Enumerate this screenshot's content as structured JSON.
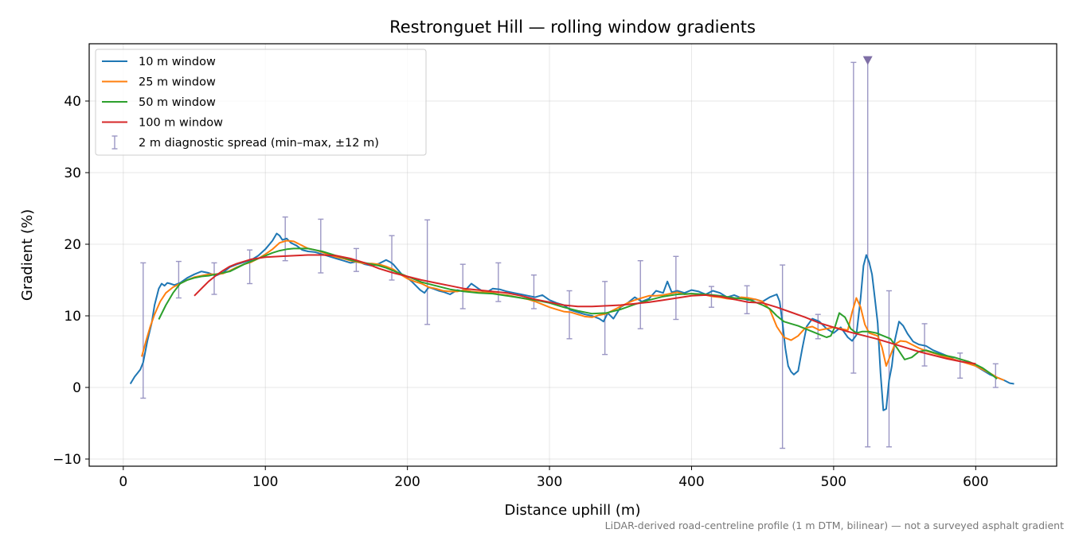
{
  "chart_data": {
    "type": "line",
    "title": "Restronguet Hill — rolling window gradients",
    "xlabel": "Distance uphill (m)",
    "ylabel": "Gradient (%)",
    "xlim": [
      -24,
      657
    ],
    "ylim": [
      -11,
      48
    ],
    "xticks": [
      0,
      100,
      200,
      300,
      400,
      500,
      600
    ],
    "xtick_labels": [
      "0",
      "100",
      "200",
      "300",
      "400",
      "500",
      "600"
    ],
    "yticks": [
      -10,
      0,
      10,
      20,
      30,
      40
    ],
    "ytick_labels": [
      "−10",
      "0",
      "10",
      "20",
      "30",
      "40"
    ],
    "grid": true,
    "legend_position": "top-left",
    "footnote": "LiDAR-derived road-centreline profile (1 m DTM, bilinear) — not a surveyed asphalt gradient",
    "series": [
      {
        "name": "10 m window",
        "color": "#1f77b4",
        "x": [
          5,
          8,
          10,
          12,
          14,
          17,
          20,
          22,
          25,
          27,
          29,
          31,
          33,
          36,
          40,
          45,
          50,
          55,
          60,
          65,
          70,
          75,
          80,
          85,
          90,
          95,
          100,
          105,
          108,
          110,
          112,
          115,
          118,
          122,
          126,
          130,
          135,
          140,
          145,
          150,
          155,
          160,
          165,
          170,
          175,
          180,
          185,
          188,
          190,
          193,
          196,
          200,
          203,
          206,
          209,
          212,
          215,
          218,
          222,
          226,
          230,
          235,
          240,
          245,
          250,
          255,
          260,
          265,
          270,
          275,
          280,
          285,
          290,
          295,
          300,
          305,
          310,
          315,
          320,
          325,
          330,
          335,
          338,
          341,
          345,
          350,
          355,
          360,
          365,
          370,
          375,
          380,
          383,
          386,
          390,
          395,
          400,
          405,
          410,
          415,
          420,
          425,
          430,
          435,
          440,
          445,
          450,
          455,
          460,
          462,
          464,
          466,
          468,
          470,
          472,
          475,
          478,
          481,
          485,
          490,
          495,
          500,
          505,
          510,
          513,
          516,
          519,
          521,
          523,
          525,
          527,
          529,
          531,
          533,
          535,
          537,
          539,
          541,
          543,
          546,
          549,
          552,
          556,
          560,
          565,
          570,
          575,
          580,
          585,
          590,
          595,
          600,
          605,
          610,
          615,
          620,
          624,
          627
        ],
        "values": [
          0.5,
          1.5,
          2.0,
          2.5,
          3.5,
          6.5,
          9.0,
          11.5,
          13.8,
          14.5,
          14.2,
          14.6,
          14.5,
          14.3,
          14.6,
          15.3,
          15.8,
          16.2,
          16.0,
          15.6,
          16.0,
          16.8,
          17.2,
          17.5,
          17.8,
          18.4,
          19.3,
          20.5,
          21.5,
          21.2,
          20.6,
          20.8,
          20.2,
          19.8,
          19.2,
          19.0,
          18.9,
          18.6,
          18.3,
          18.0,
          17.7,
          17.4,
          17.6,
          17.2,
          17.0,
          17.3,
          17.8,
          17.5,
          17.2,
          16.5,
          15.8,
          15.3,
          14.8,
          14.2,
          13.6,
          13.2,
          14.0,
          13.8,
          13.5,
          13.3,
          13.0,
          13.6,
          13.4,
          14.5,
          13.8,
          13.2,
          13.8,
          13.7,
          13.4,
          13.2,
          13.0,
          12.8,
          12.6,
          12.9,
          12.2,
          11.8,
          11.5,
          10.8,
          10.5,
          10.2,
          10.0,
          9.6,
          9.2,
          10.4,
          9.6,
          11.2,
          11.8,
          12.6,
          12.0,
          12.4,
          13.5,
          13.2,
          14.8,
          13.3,
          13.5,
          13.2,
          13.6,
          13.4,
          13.0,
          13.5,
          13.2,
          12.6,
          12.9,
          12.5,
          12.2,
          12.3,
          12.0,
          12.6,
          13.0,
          12.0,
          9.0,
          5.5,
          3.0,
          2.2,
          1.8,
          2.3,
          5.5,
          8.5,
          9.6,
          9.2,
          8.2,
          7.6,
          8.4,
          7.0,
          6.5,
          7.3,
          12.5,
          17.0,
          18.5,
          17.5,
          15.8,
          12.5,
          9.0,
          2.0,
          -3.2,
          -3.0,
          1.0,
          3.0,
          6.5,
          9.2,
          8.6,
          7.5,
          6.4,
          6.0,
          5.8,
          5.2,
          4.8,
          4.4,
          3.9,
          3.6,
          3.4,
          3.0,
          2.4,
          1.8,
          1.4,
          1.0,
          0.6,
          0.5
        ]
      },
      {
        "name": "25 m window",
        "color": "#ff7f0e",
        "x": [
          13,
          16,
          19,
          22,
          26,
          30,
          35,
          40,
          45,
          50,
          55,
          60,
          65,
          70,
          75,
          80,
          85,
          90,
          95,
          100,
          105,
          110,
          115,
          120,
          125,
          130,
          135,
          140,
          145,
          150,
          155,
          160,
          165,
          170,
          175,
          180,
          185,
          190,
          195,
          200,
          205,
          210,
          215,
          220,
          225,
          230,
          235,
          240,
          245,
          250,
          255,
          260,
          265,
          270,
          275,
          280,
          285,
          290,
          295,
          300,
          305,
          310,
          315,
          320,
          325,
          330,
          335,
          340,
          345,
          350,
          355,
          360,
          365,
          370,
          375,
          380,
          385,
          390,
          395,
          400,
          405,
          410,
          415,
          420,
          425,
          430,
          435,
          440,
          445,
          450,
          455,
          460,
          465,
          470,
          475,
          480,
          485,
          490,
          495,
          500,
          505,
          510,
          513,
          516,
          519,
          522,
          525,
          528,
          531,
          534,
          537,
          540,
          543,
          547,
          551,
          555,
          560,
          565,
          570,
          575,
          580,
          585,
          590,
          595,
          600,
          605,
          610,
          615,
          620
        ],
        "values": [
          4.3,
          6.5,
          8.5,
          10.2,
          12.0,
          13.2,
          14.0,
          14.5,
          15.0,
          15.4,
          15.6,
          15.8,
          15.8,
          15.9,
          16.3,
          16.8,
          17.2,
          17.5,
          18.0,
          18.6,
          19.3,
          20.2,
          20.5,
          20.4,
          19.9,
          19.4,
          19.2,
          18.9,
          18.5,
          18.2,
          18.0,
          17.7,
          17.5,
          17.3,
          17.3,
          17.2,
          16.9,
          16.5,
          15.8,
          15.2,
          14.8,
          14.5,
          14.0,
          13.8,
          13.5,
          13.4,
          13.4,
          13.6,
          13.4,
          13.3,
          13.3,
          13.2,
          13.0,
          12.9,
          12.7,
          12.5,
          12.3,
          12.0,
          11.6,
          11.2,
          10.9,
          10.6,
          10.5,
          10.2,
          9.9,
          9.8,
          10.1,
          10.3,
          10.8,
          11.3,
          11.8,
          12.2,
          12.5,
          12.8,
          12.8,
          12.9,
          13.1,
          13.3,
          13.0,
          13.1,
          13.0,
          12.9,
          12.7,
          12.6,
          12.4,
          12.3,
          12.6,
          12.5,
          12.3,
          12.0,
          10.9,
          8.5,
          7.0,
          6.6,
          7.2,
          8.3,
          8.5,
          8.0,
          8.2,
          8.4,
          8.2,
          8.0,
          10.5,
          12.5,
          11.2,
          8.8,
          7.6,
          7.4,
          7.2,
          5.6,
          3.0,
          4.5,
          6.0,
          6.5,
          6.4,
          6.0,
          5.5,
          5.1,
          4.8,
          4.5,
          4.2,
          3.9,
          3.6,
          3.3,
          3.0,
          2.5,
          2.0,
          1.4,
          1.0
        ]
      },
      {
        "name": "50 m window",
        "color": "#2ca02c",
        "x": [
          25,
          30,
          35,
          40,
          45,
          50,
          55,
          60,
          65,
          70,
          75,
          80,
          85,
          90,
          95,
          100,
          105,
          110,
          115,
          120,
          125,
          130,
          135,
          140,
          145,
          150,
          155,
          160,
          165,
          170,
          175,
          180,
          185,
          190,
          195,
          200,
          210,
          220,
          230,
          240,
          250,
          260,
          270,
          280,
          290,
          300,
          310,
          320,
          330,
          340,
          350,
          360,
          370,
          380,
          390,
          400,
          410,
          420,
          430,
          440,
          450,
          455,
          460,
          465,
          470,
          475,
          480,
          485,
          490,
          495,
          498,
          501,
          504,
          508,
          512,
          516,
          520,
          525,
          530,
          535,
          540,
          545,
          550,
          555,
          560,
          565,
          570,
          575,
          580,
          585,
          590,
          595,
          600,
          605,
          610,
          615
        ],
        "values": [
          9.5,
          11.5,
          13.2,
          14.5,
          15.0,
          15.3,
          15.5,
          15.6,
          15.8,
          16.0,
          16.2,
          16.7,
          17.2,
          17.6,
          18.0,
          18.4,
          18.8,
          19.1,
          19.3,
          19.4,
          19.4,
          19.4,
          19.2,
          19.0,
          18.7,
          18.4,
          18.1,
          17.8,
          17.6,
          17.4,
          17.2,
          17.0,
          16.7,
          16.3,
          15.9,
          15.5,
          14.7,
          14.2,
          13.7,
          13.4,
          13.2,
          13.1,
          12.8,
          12.5,
          12.2,
          11.8,
          11.2,
          10.7,
          10.3,
          10.4,
          10.9,
          11.6,
          12.2,
          12.7,
          13.0,
          13.1,
          13.0,
          12.8,
          12.5,
          12.3,
          11.5,
          11.0,
          10.0,
          9.2,
          8.9,
          8.6,
          8.2,
          7.8,
          7.4,
          7.0,
          7.2,
          8.5,
          10.4,
          9.8,
          8.2,
          7.6,
          7.8,
          7.8,
          7.6,
          7.2,
          6.8,
          5.4,
          3.9,
          4.2,
          5.0,
          5.2,
          4.9,
          4.6,
          4.4,
          4.2,
          3.9,
          3.6,
          3.2,
          2.7,
          2.0,
          1.2
        ]
      },
      {
        "name": "100 m window",
        "color": "#d62728",
        "x": [
          50,
          55,
          60,
          65,
          70,
          75,
          80,
          90,
          100,
          110,
          120,
          130,
          140,
          150,
          160,
          170,
          180,
          190,
          200,
          210,
          220,
          230,
          240,
          250,
          260,
          270,
          280,
          290,
          300,
          310,
          320,
          330,
          340,
          350,
          360,
          370,
          380,
          390,
          400,
          410,
          420,
          430,
          440,
          450,
          460,
          470,
          480,
          490,
          500,
          510,
          520,
          530,
          540,
          550,
          560,
          570,
          580,
          590,
          600
        ],
        "values": [
          12.8,
          13.8,
          14.8,
          15.6,
          16.3,
          16.9,
          17.3,
          17.9,
          18.2,
          18.3,
          18.4,
          18.5,
          18.5,
          18.4,
          18.0,
          17.4,
          16.6,
          16.0,
          15.5,
          15.0,
          14.6,
          14.2,
          13.8,
          13.6,
          13.4,
          13.2,
          12.8,
          12.3,
          11.9,
          11.5,
          11.3,
          11.3,
          11.4,
          11.5,
          11.7,
          11.9,
          12.2,
          12.5,
          12.8,
          12.9,
          12.7,
          12.3,
          11.9,
          11.8,
          11.2,
          10.5,
          9.8,
          9.0,
          8.4,
          7.8,
          7.3,
          6.8,
          6.2,
          5.6,
          5.0,
          4.5,
          4.0,
          3.6,
          3.3
        ]
      },
      {
        "name": "2 m diagnostic spread (min–max, ±12 m)",
        "color": "#9b97c4",
        "kind": "errorbar",
        "x": [
          14,
          39,
          64,
          89,
          114,
          139,
          164,
          189,
          214,
          239,
          264,
          289,
          314,
          339,
          364,
          389,
          414,
          439,
          464,
          489,
          514,
          524,
          539,
          564,
          589,
          614
        ],
        "low": [
          -1.5,
          12.5,
          13.0,
          14.5,
          17.7,
          16.0,
          16.2,
          15.0,
          8.8,
          11.0,
          12.0,
          11.0,
          6.8,
          4.6,
          8.2,
          9.5,
          11.2,
          10.3,
          -8.5,
          6.8,
          2.0,
          -8.3,
          -8.3,
          3.0,
          1.3,
          0.0
        ],
        "high": [
          17.4,
          17.6,
          17.4,
          19.2,
          23.8,
          23.5,
          19.4,
          21.2,
          23.4,
          17.2,
          17.4,
          15.7,
          13.5,
          14.8,
          17.7,
          18.3,
          14.1,
          14.2,
          17.1,
          10.2,
          45.4,
          45.8,
          13.5,
          8.9,
          4.8,
          3.3
        ]
      }
    ],
    "annotations": [
      {
        "type": "marker",
        "shape": "triangle-down",
        "x": 524,
        "y": 45.6,
        "color": "#7f6fa6"
      }
    ]
  }
}
